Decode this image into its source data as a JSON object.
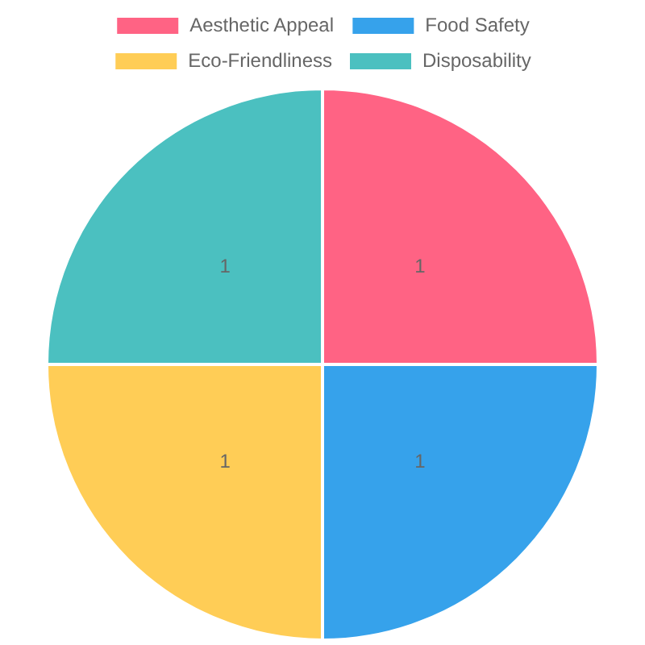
{
  "chart_data": {
    "type": "pie",
    "categories": [
      "Aesthetic Appeal",
      "Food Safety",
      "Eco-Friendliness",
      "Disposability"
    ],
    "values": [
      1,
      1,
      1,
      1
    ],
    "colors": [
      "#ff6384",
      "#36a2eb",
      "#ffcd56",
      "#4bc0c0"
    ],
    "legend": "top",
    "data_labels": true
  }
}
